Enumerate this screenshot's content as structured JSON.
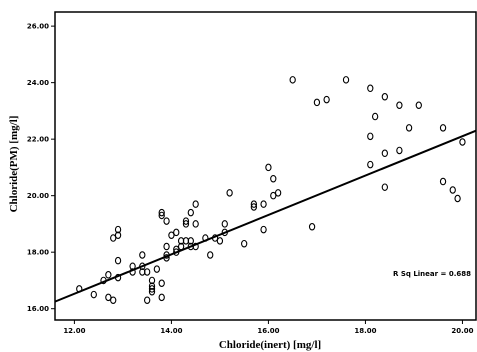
{
  "chart_data": {
    "type": "scatter",
    "title": "",
    "xlabel": "Chloride(inert) [mg/l]",
    "ylabel": "Chloride(PM) [mg/l]",
    "xlim": [
      11.6,
      20.3
    ],
    "ylim": [
      15.6,
      26.5
    ],
    "xticks": [
      "12.00",
      "14.00",
      "16.00",
      "18.00",
      "20.00"
    ],
    "xtick_values": [
      12,
      14,
      16,
      18,
      20
    ],
    "yticks": [
      "16.00",
      "18.00",
      "20.00",
      "22.00",
      "24.00",
      "26.00"
    ],
    "ytick_values": [
      16,
      18,
      20,
      22,
      24,
      26
    ],
    "grid": false,
    "legend": "none",
    "annotation": "R Sq Linear = 0.688",
    "fit_line": {
      "type": "linear",
      "x": [
        11.6,
        20.3
      ],
      "y": [
        16.25,
        22.3
      ]
    },
    "points": [
      [
        12.1,
        16.7
      ],
      [
        12.4,
        16.5
      ],
      [
        12.6,
        17.0
      ],
      [
        12.7,
        17.2
      ],
      [
        12.7,
        16.4
      ],
      [
        12.8,
        16.3
      ],
      [
        12.8,
        18.5
      ],
      [
        12.9,
        18.6
      ],
      [
        12.9,
        18.8
      ],
      [
        12.9,
        17.7
      ],
      [
        12.9,
        17.1
      ],
      [
        13.2,
        17.5
      ],
      [
        13.2,
        17.3
      ],
      [
        13.4,
        17.9
      ],
      [
        13.4,
        17.3
      ],
      [
        13.4,
        17.5
      ],
      [
        13.5,
        17.3
      ],
      [
        13.5,
        16.3
      ],
      [
        13.6,
        17.0
      ],
      [
        13.6,
        16.8
      ],
      [
        13.6,
        16.6
      ],
      [
        13.6,
        16.7
      ],
      [
        13.7,
        17.4
      ],
      [
        13.8,
        16.4
      ],
      [
        13.8,
        16.9
      ],
      [
        13.8,
        19.3
      ],
      [
        13.8,
        19.4
      ],
      [
        13.9,
        19.1
      ],
      [
        13.9,
        18.2
      ],
      [
        13.9,
        17.9
      ],
      [
        13.9,
        17.8
      ],
      [
        14.0,
        18.6
      ],
      [
        14.1,
        18.7
      ],
      [
        14.1,
        18.1
      ],
      [
        14.1,
        18.0
      ],
      [
        14.2,
        18.2
      ],
      [
        14.2,
        18.4
      ],
      [
        14.3,
        18.4
      ],
      [
        14.3,
        19.0
      ],
      [
        14.3,
        19.1
      ],
      [
        14.4,
        19.4
      ],
      [
        14.4,
        18.4
      ],
      [
        14.4,
        18.2
      ],
      [
        14.5,
        19.0
      ],
      [
        14.5,
        19.7
      ],
      [
        14.5,
        18.2
      ],
      [
        14.7,
        18.5
      ],
      [
        14.8,
        17.9
      ],
      [
        14.9,
        18.5
      ],
      [
        15.0,
        18.4
      ],
      [
        15.1,
        18.7
      ],
      [
        15.1,
        19.0
      ],
      [
        15.2,
        20.1
      ],
      [
        15.5,
        18.3
      ],
      [
        15.7,
        19.6
      ],
      [
        15.7,
        19.7
      ],
      [
        15.9,
        18.8
      ],
      [
        15.9,
        19.7
      ],
      [
        16.0,
        21.0
      ],
      [
        16.1,
        20.0
      ],
      [
        16.1,
        20.6
      ],
      [
        16.2,
        20.1
      ],
      [
        16.5,
        24.1
      ],
      [
        16.9,
        18.9
      ],
      [
        17.0,
        23.3
      ],
      [
        17.2,
        23.4
      ],
      [
        17.6,
        24.1
      ],
      [
        18.1,
        23.8
      ],
      [
        18.1,
        22.1
      ],
      [
        18.1,
        21.1
      ],
      [
        18.2,
        22.8
      ],
      [
        18.4,
        23.5
      ],
      [
        18.4,
        21.5
      ],
      [
        18.4,
        20.3
      ],
      [
        18.7,
        23.2
      ],
      [
        18.7,
        21.6
      ],
      [
        18.9,
        22.4
      ],
      [
        19.1,
        23.2
      ],
      [
        19.6,
        22.4
      ],
      [
        19.6,
        20.5
      ],
      [
        19.8,
        20.2
      ],
      [
        19.9,
        19.9
      ],
      [
        20.0,
        21.9
      ]
    ]
  }
}
